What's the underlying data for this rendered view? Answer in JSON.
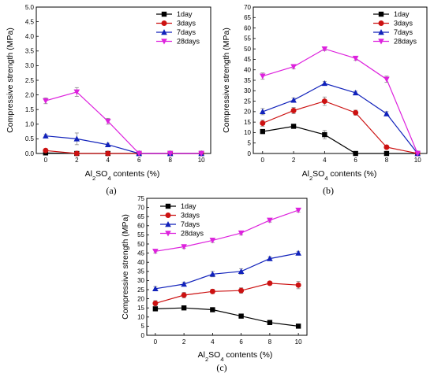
{
  "legend_labels": [
    "1day",
    "3days",
    "7days",
    "28days"
  ],
  "colors": {
    "1day": "#000000",
    "3days": "#cc1111",
    "7days": "#1122bb",
    "28days": "#dd22dd"
  },
  "chart_data": [
    {
      "type": "line",
      "caption": "(a)",
      "xlabel": "Al2SO4 contents (%)",
      "ylabel": "Compressive strength (MPa)",
      "xlim": [
        -0.6,
        10.6
      ],
      "ylim": [
        0,
        5
      ],
      "xticks": [
        0,
        2,
        4,
        6,
        8,
        10
      ],
      "yticks": [
        "0.0",
        "0.5",
        "1.0",
        "1.5",
        "2.0",
        "2.5",
        "3.0",
        "3.5",
        "4.0",
        "4.5",
        "5.0"
      ],
      "legend_position": "top-right",
      "x": [
        0,
        2,
        4,
        6,
        8,
        10
      ],
      "series": [
        {
          "name": "1day",
          "values": [
            0.02,
            0.0,
            0.0,
            0.0,
            0.0,
            0.0
          ],
          "errors": [
            0.02,
            0,
            0,
            0,
            0,
            0
          ]
        },
        {
          "name": "3days",
          "values": [
            0.1,
            0.0,
            0.0,
            0.0,
            0.0,
            0.0
          ],
          "errors": [
            0.03,
            0,
            0,
            0,
            0,
            0
          ]
        },
        {
          "name": "7days",
          "values": [
            0.6,
            0.5,
            0.3,
            0.0,
            0.0,
            0.0
          ],
          "errors": [
            0.05,
            0.2,
            0.05,
            0,
            0,
            0
          ]
        },
        {
          "name": "28days",
          "values": [
            1.8,
            2.1,
            1.1,
            0.0,
            0.0,
            0.0
          ],
          "errors": [
            0.1,
            0.15,
            0.1,
            0,
            0,
            0
          ]
        }
      ]
    },
    {
      "type": "line",
      "caption": "(b)",
      "xlabel": "Al2SO4 contents (%)",
      "ylabel": "Compressive strength (MPa)",
      "xlim": [
        -0.6,
        10.6
      ],
      "ylim": [
        0,
        70
      ],
      "xticks": [
        0,
        2,
        4,
        6,
        8,
        10
      ],
      "yticks": [
        "0",
        "5",
        "10",
        "15",
        "20",
        "25",
        "30",
        "35",
        "40",
        "45",
        "50",
        "55",
        "60",
        "65",
        "70"
      ],
      "legend_position": "top-right",
      "x": [
        0,
        2,
        4,
        6,
        8,
        10
      ],
      "series": [
        {
          "name": "1day",
          "values": [
            10.5,
            13.0,
            9.0,
            0.0,
            0.0,
            0.0
          ],
          "errors": [
            1.0,
            0.8,
            2.0,
            0,
            0,
            0
          ]
        },
        {
          "name": "3days",
          "values": [
            14.5,
            20.5,
            25.0,
            19.5,
            3.0,
            0.0
          ],
          "errors": [
            1.5,
            1.5,
            2.0,
            1.2,
            0.5,
            0
          ]
        },
        {
          "name": "7days",
          "values": [
            20.0,
            25.5,
            33.5,
            29.0,
            19.0,
            0.0
          ],
          "errors": [
            1.5,
            1.0,
            1.0,
            0.8,
            1.0,
            0
          ]
        },
        {
          "name": "28days",
          "values": [
            37.0,
            41.5,
            50.0,
            45.5,
            35.5,
            0.0
          ],
          "errors": [
            1.5,
            1.0,
            0.8,
            1.0,
            1.5,
            0
          ]
        }
      ]
    },
    {
      "type": "line",
      "caption": "(c)",
      "xlabel": "Al2SO4 contents (%)",
      "ylabel": "Compressive strength (MPa)",
      "xlim": [
        -0.6,
        10.6
      ],
      "ylim": [
        0,
        75
      ],
      "xticks": [
        0,
        2,
        4,
        6,
        8,
        10
      ],
      "yticks": [
        "0",
        "5",
        "10",
        "15",
        "20",
        "25",
        "30",
        "35",
        "40",
        "45",
        "50",
        "55",
        "60",
        "65",
        "70",
        "75"
      ],
      "legend_position": "top-left",
      "x": [
        0,
        2,
        4,
        6,
        8,
        10
      ],
      "series": [
        {
          "name": "1day",
          "values": [
            14.5,
            15.0,
            14.0,
            10.5,
            7.0,
            5.0
          ],
          "errors": [
            1.2,
            0.8,
            0.5,
            0.8,
            1.2,
            0.5
          ]
        },
        {
          "name": "3days",
          "values": [
            17.5,
            22.0,
            24.0,
            24.5,
            28.5,
            27.5
          ],
          "errors": [
            1.5,
            1.5,
            1.2,
            1.5,
            1.0,
            2.0
          ]
        },
        {
          "name": "7days",
          "values": [
            25.5,
            28.0,
            33.5,
            35.0,
            42.0,
            45.0
          ],
          "errors": [
            1.2,
            1.0,
            1.5,
            1.5,
            1.0,
            1.0
          ]
        },
        {
          "name": "28days",
          "values": [
            46.0,
            48.5,
            52.0,
            56.0,
            63.0,
            68.5
          ],
          "errors": [
            1.0,
            1.0,
            1.2,
            1.0,
            1.0,
            1.0
          ]
        }
      ]
    }
  ]
}
